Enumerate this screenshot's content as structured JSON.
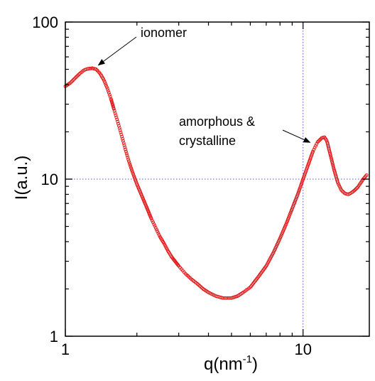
{
  "chart_data": {
    "type": "scatter",
    "xlabel": "q(nm",
    "xlabel_sup": "-1",
    "xlabel_close": ")",
    "ylabel": "I(a.u.)",
    "xscale": "log",
    "yscale": "log",
    "xlim": [
      1,
      19
    ],
    "ylim": [
      1,
      100
    ],
    "x_ticks": [
      "1",
      "10"
    ],
    "y_ticks": [
      "1",
      "10",
      "100"
    ],
    "x_tick_values": [
      1,
      10
    ],
    "y_tick_values": [
      1,
      10,
      100
    ],
    "reference_lines": {
      "x": 10,
      "y": 10,
      "color": "#4a5bd6"
    },
    "marker_color": "#e01010",
    "annotations": [
      {
        "text": "ionomer",
        "x": 1.33,
        "y": 51
      },
      {
        "text": "amorphous &",
        "text2": "crystalline",
        "x": 10.7,
        "y": 17.5
      }
    ],
    "series": [
      {
        "marker": "open-circle",
        "points": [
          [
            1.0,
            39
          ],
          [
            1.05,
            41
          ],
          [
            1.1,
            44
          ],
          [
            1.15,
            47
          ],
          [
            1.2,
            49.5
          ],
          [
            1.25,
            50.5
          ],
          [
            1.3,
            50.8
          ],
          [
            1.35,
            50
          ],
          [
            1.4,
            47
          ],
          [
            1.45,
            43
          ],
          [
            1.5,
            38
          ],
          [
            1.55,
            33
          ],
          [
            1.6,
            28
          ],
          [
            1.65,
            24
          ],
          [
            1.7,
            20.5
          ],
          [
            1.75,
            17.5
          ],
          [
            1.8,
            15
          ],
          [
            1.85,
            13
          ],
          [
            1.9,
            11.5
          ],
          [
            1.95,
            10.3
          ],
          [
            2.0,
            9.3
          ],
          [
            2.1,
            7.8
          ],
          [
            2.2,
            6.6
          ],
          [
            2.3,
            5.6
          ],
          [
            2.4,
            4.9
          ],
          [
            2.5,
            4.3
          ],
          [
            2.6,
            3.9
          ],
          [
            2.7,
            3.5
          ],
          [
            2.8,
            3.2
          ],
          [
            3.0,
            2.8
          ],
          [
            3.2,
            2.5
          ],
          [
            3.4,
            2.3
          ],
          [
            3.6,
            2.15
          ],
          [
            3.8,
            2.0
          ],
          [
            4.0,
            1.9
          ],
          [
            4.3,
            1.8
          ],
          [
            4.6,
            1.75
          ],
          [
            5.0,
            1.75
          ],
          [
            5.3,
            1.8
          ],
          [
            5.6,
            1.9
          ],
          [
            6.0,
            2.05
          ],
          [
            6.5,
            2.4
          ],
          [
            7.0,
            2.8
          ],
          [
            7.5,
            3.4
          ],
          [
            8.0,
            4.2
          ],
          [
            8.5,
            5.2
          ],
          [
            9.0,
            6.5
          ],
          [
            9.5,
            8.0
          ],
          [
            10.0,
            10.0
          ],
          [
            10.5,
            12.3
          ],
          [
            11.0,
            15.0
          ],
          [
            11.5,
            17.2
          ],
          [
            12.0,
            18.3
          ],
          [
            12.3,
            18.5
          ],
          [
            12.6,
            17.5
          ],
          [
            13.0,
            14.5
          ],
          [
            13.5,
            11.5
          ],
          [
            14.0,
            9.5
          ],
          [
            14.5,
            8.5
          ],
          [
            15.0,
            8.1
          ],
          [
            15.5,
            8.0
          ],
          [
            16.0,
            8.2
          ],
          [
            16.5,
            8.5
          ],
          [
            17.0,
            8.9
          ],
          [
            17.5,
            9.5
          ],
          [
            18.0,
            10.1
          ],
          [
            18.5,
            10.6
          ]
        ]
      }
    ]
  }
}
